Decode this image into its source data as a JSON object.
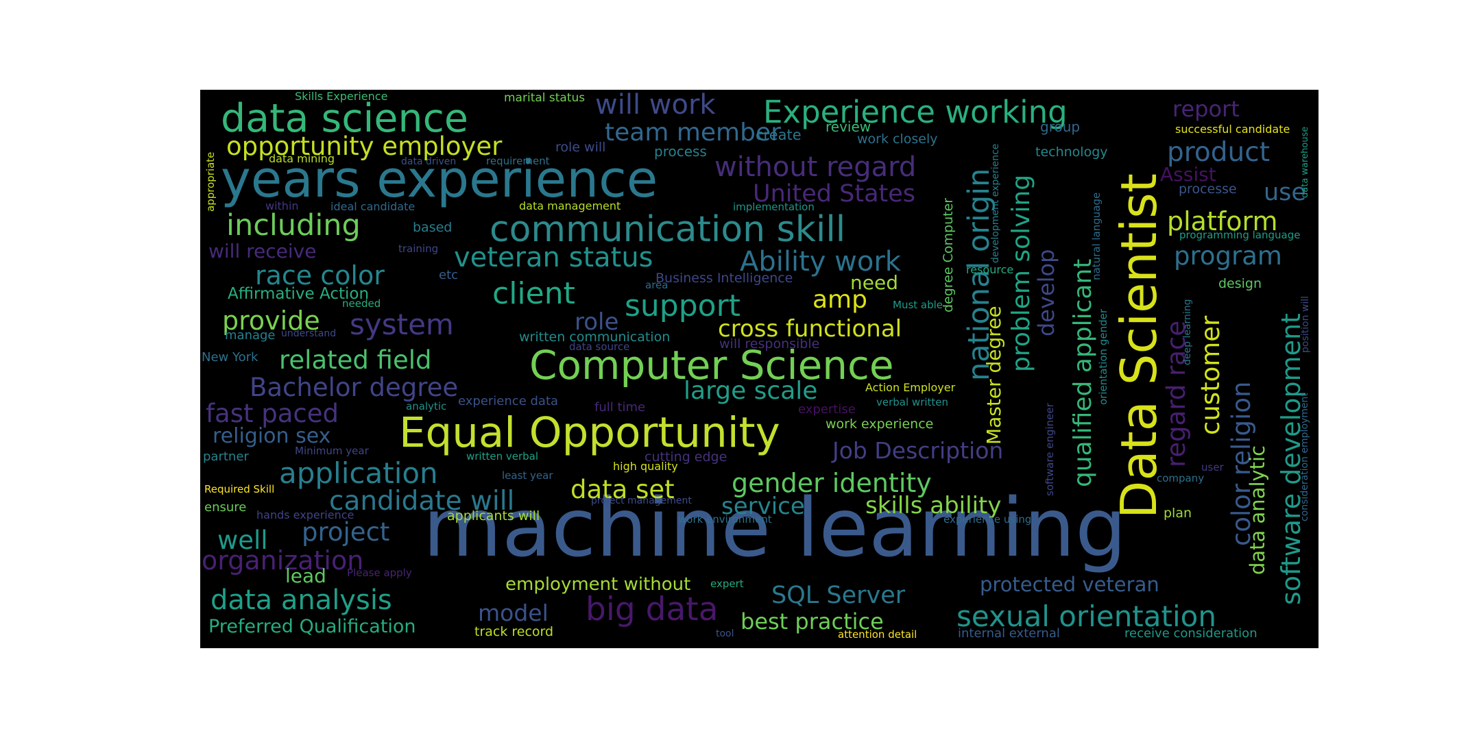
{
  "words": [
    {
      "text": "machine learning",
      "color": "#3b5a8c"
    },
    {
      "text": "Data Scientist",
      "color": "#d8e219"
    },
    {
      "text": "years experience",
      "color": "#2a788e"
    },
    {
      "text": "Equal Opportunity",
      "color": "#c3e02e"
    },
    {
      "text": "Computer Science",
      "color": "#73d055"
    },
    {
      "text": "communication skill",
      "color": "#2d8a8c"
    },
    {
      "text": "data science",
      "color": "#35b779"
    },
    {
      "text": "Experience working",
      "color": "#2ab07f"
    },
    {
      "text": "opportunity employer",
      "color": "#c6e021"
    },
    {
      "text": "without regard",
      "color": "#472d7b"
    },
    {
      "text": "will work",
      "color": "#3e4a89"
    },
    {
      "text": "team member",
      "color": "#31688e"
    },
    {
      "text": "United States",
      "color": "#482878"
    },
    {
      "text": "national origin",
      "color": "#26828e"
    },
    {
      "text": "qualified applicant",
      "color": "#35b779"
    },
    {
      "text": "problem solving",
      "color": "#20a486"
    },
    {
      "text": "including",
      "color": "#6ccd5a"
    },
    {
      "text": "veteran status",
      "color": "#21918c"
    },
    {
      "text": "Ability work",
      "color": "#2c728e"
    },
    {
      "text": "race color",
      "color": "#24878e"
    },
    {
      "text": "client",
      "color": "#22a884"
    },
    {
      "text": "support",
      "color": "#1fa187"
    },
    {
      "text": "amp",
      "color": "#dde318"
    },
    {
      "text": "system",
      "color": "#443983"
    },
    {
      "text": "provide",
      "color": "#7ad151"
    },
    {
      "text": "role",
      "color": "#3b528b"
    },
    {
      "text": "cross functional",
      "color": "#d0e11c"
    },
    {
      "text": "related field",
      "color": "#4ac16d"
    },
    {
      "text": "Bachelor degree",
      "color": "#414487"
    },
    {
      "text": "large scale",
      "color": "#1f9e89"
    },
    {
      "text": "fast paced",
      "color": "#46327e"
    },
    {
      "text": "religion sex",
      "color": "#355f8d"
    },
    {
      "text": "application",
      "color": "#277f8e"
    },
    {
      "text": "candidate will",
      "color": "#2a788e"
    },
    {
      "text": "data set",
      "color": "#c0df25"
    },
    {
      "text": "gender identity",
      "color": "#5ec962"
    },
    {
      "text": "service",
      "color": "#25848e"
    },
    {
      "text": "skills ability",
      "color": "#86d549"
    },
    {
      "text": "well",
      "color": "#1e9b8a"
    },
    {
      "text": "project",
      "color": "#33638d"
    },
    {
      "text": "organization",
      "color": "#482173"
    },
    {
      "text": "lead",
      "color": "#5ec962"
    },
    {
      "text": "data analysis",
      "color": "#1fa088"
    },
    {
      "text": "Preferred Qualification",
      "color": "#26ad81"
    },
    {
      "text": "model",
      "color": "#3b528b"
    },
    {
      "text": "big data",
      "color": "#48186a"
    },
    {
      "text": "best practice",
      "color": "#6ece58"
    },
    {
      "text": "SQL Server",
      "color": "#2a788e"
    },
    {
      "text": "sexual orientation",
      "color": "#20938c"
    },
    {
      "text": "protected veteran",
      "color": "#365c8d"
    },
    {
      "text": "employment without",
      "color": "#a5db36"
    },
    {
      "text": "product",
      "color": "#33638d"
    },
    {
      "text": "report",
      "color": "#482475"
    },
    {
      "text": "Assist",
      "color": "#471164"
    },
    {
      "text": "use",
      "color": "#31678e"
    },
    {
      "text": "platform",
      "color": "#b5de2b"
    },
    {
      "text": "program",
      "color": "#2d708e"
    },
    {
      "text": "Job Description",
      "color": "#433e85"
    },
    {
      "text": "Master degree",
      "color": "#cae11f"
    },
    {
      "text": "develop",
      "color": "#3e4989"
    },
    {
      "text": "customer",
      "color": "#d2e21b"
    },
    {
      "text": "color religion",
      "color": "#38598c"
    },
    {
      "text": "regard race",
      "color": "#481f70"
    },
    {
      "text": "software development",
      "color": "#1f9a8a"
    },
    {
      "text": "data analytic",
      "color": "#7fd34e"
    },
    {
      "text": "will receive",
      "color": "#472a7a"
    },
    {
      "text": "Affirmative Action",
      "color": "#29af7f"
    },
    {
      "text": "need",
      "color": "#a2da37"
    },
    {
      "text": "Skills Experience",
      "color": "#3dbc74"
    },
    {
      "text": "marital status",
      "color": "#73d055"
    },
    {
      "text": "role will",
      "color": "#3e4c8a"
    },
    {
      "text": "process",
      "color": "#26828e"
    },
    {
      "text": "create",
      "color": "#2a788e"
    },
    {
      "text": "review",
      "color": "#3aba76"
    },
    {
      "text": "work closely",
      "color": "#2c728e"
    },
    {
      "text": "group",
      "color": "#31688e"
    },
    {
      "text": "technology",
      "color": "#238a8d"
    },
    {
      "text": "successful candidate",
      "color": "#e7e419"
    },
    {
      "text": "data mining",
      "color": "#bade28"
    },
    {
      "text": "data driven",
      "color": "#3b528b"
    },
    {
      "text": "requirement",
      "color": "#2d708e"
    },
    {
      "text": "ideal candidate",
      "color": "#31688e"
    },
    {
      "text": "within",
      "color": "#453781"
    },
    {
      "text": "data management",
      "color": "#b8de29"
    },
    {
      "text": "implementation",
      "color": "#1f968b"
    },
    {
      "text": "processe",
      "color": "#39568c"
    },
    {
      "text": "based",
      "color": "#277f8e"
    },
    {
      "text": "training",
      "color": "#404688"
    },
    {
      "text": "etc",
      "color": "#355f8d"
    },
    {
      "text": "area",
      "color": "#2f6c8e"
    },
    {
      "text": "Business Intelligence",
      "color": "#3f4788"
    },
    {
      "text": "resource",
      "color": "#25ab82"
    },
    {
      "text": "design",
      "color": "#5ec962"
    },
    {
      "text": "programming language",
      "color": "#1f9e89"
    },
    {
      "text": "needed",
      "color": "#29af7f"
    },
    {
      "text": "manage",
      "color": "#26828e"
    },
    {
      "text": "understand",
      "color": "#3e4989"
    },
    {
      "text": "written communication",
      "color": "#228c8d"
    },
    {
      "text": "data source",
      "color": "#414487"
    },
    {
      "text": "will responsible",
      "color": "#46307e"
    },
    {
      "text": "Must able",
      "color": "#1f9e89"
    },
    {
      "text": "New York",
      "color": "#2d708e"
    },
    {
      "text": "Action Employer",
      "color": "#cde11d"
    },
    {
      "text": "analytic",
      "color": "#21918c"
    },
    {
      "text": "experience data",
      "color": "#3b528b"
    },
    {
      "text": "full time",
      "color": "#482878"
    },
    {
      "text": "expertise",
      "color": "#471063"
    },
    {
      "text": "verbal written",
      "color": "#20938c"
    },
    {
      "text": "work experience",
      "color": "#7ad151"
    },
    {
      "text": "Minimum year",
      "color": "#404688"
    },
    {
      "text": "partner",
      "color": "#26828e"
    },
    {
      "text": "written verbal",
      "color": "#1fa188"
    },
    {
      "text": "cutting edge",
      "color": "#46327e"
    },
    {
      "text": "high quality",
      "color": "#d5e21a"
    },
    {
      "text": "least year",
      "color": "#32658e"
    },
    {
      "text": "user",
      "color": "#443a83"
    },
    {
      "text": "company",
      "color": "#2d708e"
    },
    {
      "text": "Required Skill",
      "color": "#fde725"
    },
    {
      "text": "ensure",
      "color": "#6ccd5a"
    },
    {
      "text": "hands experience",
      "color": "#414487"
    },
    {
      "text": "project management",
      "color": "#3e4c8a"
    },
    {
      "text": "applicants will",
      "color": "#a8db34"
    },
    {
      "text": "work environment",
      "color": "#2c728e"
    },
    {
      "text": "experience using",
      "color": "#2f6c8e"
    },
    {
      "text": "plan",
      "color": "#a2da37"
    },
    {
      "text": "Please apply",
      "color": "#482475"
    },
    {
      "text": "expert",
      "color": "#25ab82"
    },
    {
      "text": "track record",
      "color": "#c2df23"
    },
    {
      "text": "tool",
      "color": "#3b528b"
    },
    {
      "text": "attention detail",
      "color": "#fde725"
    },
    {
      "text": "internal external",
      "color": "#365c8d"
    },
    {
      "text": "receive consideration",
      "color": "#1f9a8a"
    },
    {
      "text": "appropriate",
      "color": "#c8e020"
    },
    {
      "text": "degree Computer",
      "color": "#5cc863"
    },
    {
      "text": "development experience",
      "color": "#27808e"
    },
    {
      "text": "natural language",
      "color": "#2e6e8e"
    },
    {
      "text": "orientation gender",
      "color": "#238a8d"
    },
    {
      "text": "software engineer",
      "color": "#3f4889"
    },
    {
      "text": "deep learning",
      "color": "#2a788e"
    },
    {
      "text": "data warehouse",
      "color": "#1fa088"
    },
    {
      "text": "consideration employment",
      "color": "#31688e"
    },
    {
      "text": "position will",
      "color": "#3e4c8a"
    }
  ]
}
